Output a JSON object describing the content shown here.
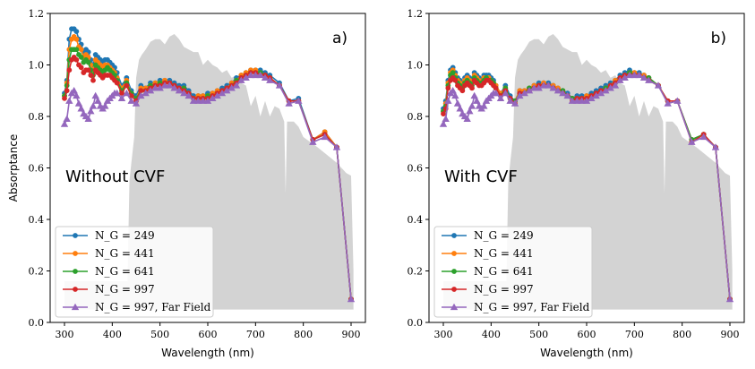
{
  "chart_data": [
    {
      "type": "line",
      "panel_label": "a)",
      "annotation": "Without CVF",
      "xlabel": "Wavelength (nm)",
      "ylabel": "Absorptance",
      "xlim": [
        270,
        930
      ],
      "ylim": [
        0.0,
        1.2
      ],
      "xticks": [
        "300",
        "400",
        "500",
        "600",
        "700",
        "800",
        "900"
      ],
      "yticks": [
        "0.0",
        "0.2",
        "0.4",
        "0.6",
        "0.8",
        "1.0",
        "1.2"
      ],
      "legend_position": "lower-left",
      "x": [
        300,
        305,
        310,
        315,
        320,
        325,
        330,
        335,
        340,
        345,
        350,
        355,
        360,
        365,
        370,
        375,
        380,
        385,
        390,
        395,
        400,
        405,
        410,
        420,
        430,
        440,
        450,
        460,
        470,
        480,
        490,
        500,
        510,
        520,
        530,
        540,
        550,
        560,
        570,
        580,
        590,
        600,
        610,
        620,
        630,
        640,
        650,
        660,
        670,
        680,
        690,
        700,
        710,
        720,
        730,
        750,
        770,
        790,
        820,
        845,
        870,
        900
      ],
      "series": [
        {
          "name": "N_G = 249",
          "legend_label": "N_G = 249",
          "color": "#1f77b4",
          "marker": "circle",
          "values": [
            0.89,
            0.94,
            1.1,
            1.14,
            1.14,
            1.13,
            1.1,
            1.08,
            1.05,
            1.06,
            1.05,
            1.02,
            1.0,
            1.04,
            1.03,
            1.02,
            1.01,
            1.02,
            1.02,
            1.01,
            1.0,
            0.99,
            0.97,
            0.92,
            0.95,
            0.9,
            0.88,
            0.92,
            0.91,
            0.93,
            0.93,
            0.94,
            0.94,
            0.94,
            0.93,
            0.92,
            0.92,
            0.9,
            0.88,
            0.88,
            0.88,
            0.89,
            0.89,
            0.9,
            0.91,
            0.92,
            0.93,
            0.95,
            0.96,
            0.97,
            0.98,
            0.98,
            0.98,
            0.97,
            0.96,
            0.93,
            0.86,
            0.87,
            0.71,
            0.74,
            0.68,
            0.09
          ]
        },
        {
          "name": "N_G = 441",
          "legend_label": "N_G = 441",
          "color": "#ff7f0e",
          "marker": "circle",
          "values": [
            0.88,
            0.93,
            1.06,
            1.1,
            1.11,
            1.1,
            1.07,
            1.06,
            1.03,
            1.04,
            1.03,
            1.0,
            0.98,
            1.02,
            1.01,
            1.0,
            0.99,
            1.0,
            1.0,
            0.99,
            0.98,
            0.97,
            0.95,
            0.91,
            0.94,
            0.89,
            0.87,
            0.91,
            0.91,
            0.92,
            0.93,
            0.93,
            0.94,
            0.93,
            0.92,
            0.91,
            0.91,
            0.89,
            0.87,
            0.88,
            0.88,
            0.88,
            0.89,
            0.9,
            0.9,
            0.91,
            0.93,
            0.94,
            0.96,
            0.97,
            0.98,
            0.98,
            0.97,
            0.96,
            0.95,
            0.92,
            0.86,
            0.86,
            0.71,
            0.74,
            0.68,
            0.09
          ]
        },
        {
          "name": "N_G = 641",
          "legend_label": "N_G = 641",
          "color": "#2ca02c",
          "marker": "circle",
          "values": [
            0.88,
            0.92,
            1.02,
            1.06,
            1.06,
            1.06,
            1.04,
            1.03,
            1.01,
            1.02,
            1.01,
            0.98,
            0.96,
            1.0,
            0.99,
            0.98,
            0.97,
            0.98,
            0.99,
            0.98,
            0.97,
            0.96,
            0.94,
            0.9,
            0.93,
            0.89,
            0.87,
            0.9,
            0.9,
            0.92,
            0.92,
            0.93,
            0.93,
            0.93,
            0.92,
            0.91,
            0.91,
            0.89,
            0.87,
            0.87,
            0.87,
            0.88,
            0.88,
            0.89,
            0.9,
            0.91,
            0.92,
            0.94,
            0.95,
            0.96,
            0.97,
            0.97,
            0.97,
            0.96,
            0.95,
            0.92,
            0.86,
            0.86,
            0.71,
            0.73,
            0.68,
            0.09
          ]
        },
        {
          "name": "N_G = 997",
          "legend_label": "N_G = 997",
          "color": "#d62728",
          "marker": "circle",
          "values": [
            0.87,
            0.9,
            0.98,
            1.02,
            1.03,
            1.02,
            1.0,
            0.99,
            0.97,
            0.98,
            0.98,
            0.96,
            0.94,
            0.98,
            0.97,
            0.96,
            0.95,
            0.96,
            0.96,
            0.96,
            0.95,
            0.94,
            0.93,
            0.89,
            0.92,
            0.88,
            0.86,
            0.9,
            0.9,
            0.91,
            0.92,
            0.92,
            0.93,
            0.93,
            0.92,
            0.91,
            0.9,
            0.89,
            0.87,
            0.87,
            0.87,
            0.87,
            0.88,
            0.89,
            0.9,
            0.91,
            0.92,
            0.93,
            0.95,
            0.96,
            0.97,
            0.97,
            0.96,
            0.96,
            0.95,
            0.92,
            0.86,
            0.86,
            0.71,
            0.73,
            0.68,
            0.09
          ]
        },
        {
          "name": "N_G = 997, Far Field",
          "legend_label": "N_G = 997, Far Field",
          "color": "#9467bd",
          "marker": "triangle",
          "values": [
            0.77,
            0.79,
            0.86,
            0.89,
            0.9,
            0.88,
            0.85,
            0.83,
            0.81,
            0.8,
            0.79,
            0.82,
            0.84,
            0.88,
            0.86,
            0.84,
            0.83,
            0.84,
            0.86,
            0.87,
            0.88,
            0.89,
            0.89,
            0.87,
            0.89,
            0.86,
            0.85,
            0.88,
            0.89,
            0.9,
            0.91,
            0.91,
            0.92,
            0.92,
            0.91,
            0.9,
            0.89,
            0.88,
            0.86,
            0.86,
            0.86,
            0.86,
            0.87,
            0.88,
            0.89,
            0.9,
            0.91,
            0.92,
            0.94,
            0.95,
            0.96,
            0.96,
            0.96,
            0.95,
            0.94,
            0.92,
            0.85,
            0.86,
            0.7,
            0.72,
            0.68,
            0.09
          ]
        }
      ],
      "background_spectrum": {
        "color": "#d3d3d3"
      }
    },
    {
      "type": "line",
      "panel_label": "b)",
      "annotation": "With CVF",
      "xlabel": "Wavelength (nm)",
      "ylabel": "",
      "xlim": [
        270,
        930
      ],
      "ylim": [
        0.0,
        1.2
      ],
      "xticks": [
        "300",
        "400",
        "500",
        "600",
        "700",
        "800",
        "900"
      ],
      "yticks": [
        "0.0",
        "0.2",
        "0.4",
        "0.6",
        "0.8",
        "1.0",
        "1.2"
      ],
      "legend_position": "lower-left",
      "x": [
        300,
        305,
        310,
        315,
        320,
        325,
        330,
        335,
        340,
        345,
        350,
        355,
        360,
        365,
        370,
        375,
        380,
        385,
        390,
        395,
        400,
        405,
        410,
        420,
        430,
        440,
        450,
        460,
        470,
        480,
        490,
        500,
        510,
        520,
        530,
        540,
        550,
        560,
        570,
        580,
        590,
        600,
        610,
        620,
        630,
        640,
        650,
        660,
        670,
        680,
        690,
        700,
        710,
        720,
        730,
        750,
        770,
        790,
        820,
        845,
        870,
        900
      ],
      "series": [
        {
          "name": "N_G = 249",
          "legend_label": "N_G = 249",
          "color": "#1f77b4",
          "marker": "circle",
          "values": [
            0.83,
            0.86,
            0.94,
            0.98,
            0.99,
            0.97,
            0.95,
            0.94,
            0.93,
            0.95,
            0.96,
            0.95,
            0.94,
            0.97,
            0.96,
            0.95,
            0.94,
            0.96,
            0.96,
            0.96,
            0.95,
            0.94,
            0.92,
            0.89,
            0.92,
            0.88,
            0.86,
            0.9,
            0.9,
            0.91,
            0.92,
            0.93,
            0.93,
            0.93,
            0.92,
            0.91,
            0.9,
            0.89,
            0.87,
            0.88,
            0.88,
            0.88,
            0.89,
            0.9,
            0.91,
            0.92,
            0.93,
            0.94,
            0.96,
            0.97,
            0.98,
            0.97,
            0.97,
            0.96,
            0.95,
            0.92,
            0.86,
            0.86,
            0.71,
            0.73,
            0.68,
            0.09
          ]
        },
        {
          "name": "N_G = 441",
          "legend_label": "N_G = 441",
          "color": "#ff7f0e",
          "marker": "circle",
          "values": [
            0.82,
            0.85,
            0.93,
            0.97,
            0.98,
            0.96,
            0.94,
            0.93,
            0.92,
            0.94,
            0.95,
            0.94,
            0.93,
            0.96,
            0.95,
            0.94,
            0.93,
            0.95,
            0.95,
            0.95,
            0.94,
            0.93,
            0.92,
            0.89,
            0.91,
            0.87,
            0.86,
            0.9,
            0.9,
            0.91,
            0.92,
            0.92,
            0.93,
            0.92,
            0.92,
            0.91,
            0.9,
            0.88,
            0.87,
            0.87,
            0.87,
            0.88,
            0.88,
            0.89,
            0.9,
            0.91,
            0.92,
            0.94,
            0.95,
            0.96,
            0.97,
            0.97,
            0.96,
            0.96,
            0.95,
            0.92,
            0.86,
            0.86,
            0.71,
            0.73,
            0.68,
            0.09
          ]
        },
        {
          "name": "N_G = 641",
          "legend_label": "N_G = 641",
          "color": "#2ca02c",
          "marker": "circle",
          "values": [
            0.82,
            0.84,
            0.92,
            0.96,
            0.97,
            0.95,
            0.93,
            0.92,
            0.91,
            0.93,
            0.94,
            0.93,
            0.92,
            0.95,
            0.94,
            0.93,
            0.93,
            0.94,
            0.95,
            0.94,
            0.94,
            0.93,
            0.91,
            0.88,
            0.91,
            0.87,
            0.86,
            0.89,
            0.89,
            0.91,
            0.91,
            0.92,
            0.92,
            0.92,
            0.91,
            0.9,
            0.9,
            0.88,
            0.87,
            0.87,
            0.87,
            0.87,
            0.88,
            0.89,
            0.9,
            0.91,
            0.92,
            0.93,
            0.95,
            0.96,
            0.97,
            0.96,
            0.96,
            0.95,
            0.95,
            0.92,
            0.86,
            0.86,
            0.71,
            0.73,
            0.68,
            0.09
          ]
        },
        {
          "name": "N_G = 997",
          "legend_label": "N_G = 997",
          "color": "#d62728",
          "marker": "circle",
          "values": [
            0.81,
            0.83,
            0.91,
            0.94,
            0.95,
            0.94,
            0.92,
            0.91,
            0.9,
            0.92,
            0.93,
            0.92,
            0.91,
            0.94,
            0.93,
            0.92,
            0.92,
            0.93,
            0.94,
            0.94,
            0.93,
            0.92,
            0.91,
            0.88,
            0.9,
            0.87,
            0.85,
            0.89,
            0.89,
            0.9,
            0.91,
            0.92,
            0.92,
            0.92,
            0.91,
            0.9,
            0.89,
            0.88,
            0.86,
            0.87,
            0.87,
            0.87,
            0.88,
            0.89,
            0.9,
            0.9,
            0.92,
            0.93,
            0.95,
            0.96,
            0.96,
            0.96,
            0.96,
            0.95,
            0.94,
            0.92,
            0.86,
            0.86,
            0.7,
            0.73,
            0.68,
            0.09
          ]
        },
        {
          "name": "N_G = 997, Far Field",
          "legend_label": "N_G = 997, Far Field",
          "color": "#9467bd",
          "marker": "triangle",
          "values": [
            0.77,
            0.79,
            0.86,
            0.89,
            0.9,
            0.88,
            0.85,
            0.83,
            0.81,
            0.8,
            0.79,
            0.82,
            0.84,
            0.88,
            0.86,
            0.84,
            0.83,
            0.84,
            0.86,
            0.87,
            0.88,
            0.89,
            0.89,
            0.87,
            0.89,
            0.86,
            0.85,
            0.88,
            0.89,
            0.9,
            0.91,
            0.91,
            0.92,
            0.92,
            0.91,
            0.9,
            0.89,
            0.88,
            0.86,
            0.86,
            0.86,
            0.86,
            0.87,
            0.88,
            0.89,
            0.9,
            0.91,
            0.92,
            0.94,
            0.95,
            0.96,
            0.96,
            0.96,
            0.95,
            0.94,
            0.92,
            0.85,
            0.86,
            0.7,
            0.72,
            0.68,
            0.09
          ]
        }
      ],
      "background_spectrum": {
        "color": "#d3d3d3"
      }
    }
  ]
}
